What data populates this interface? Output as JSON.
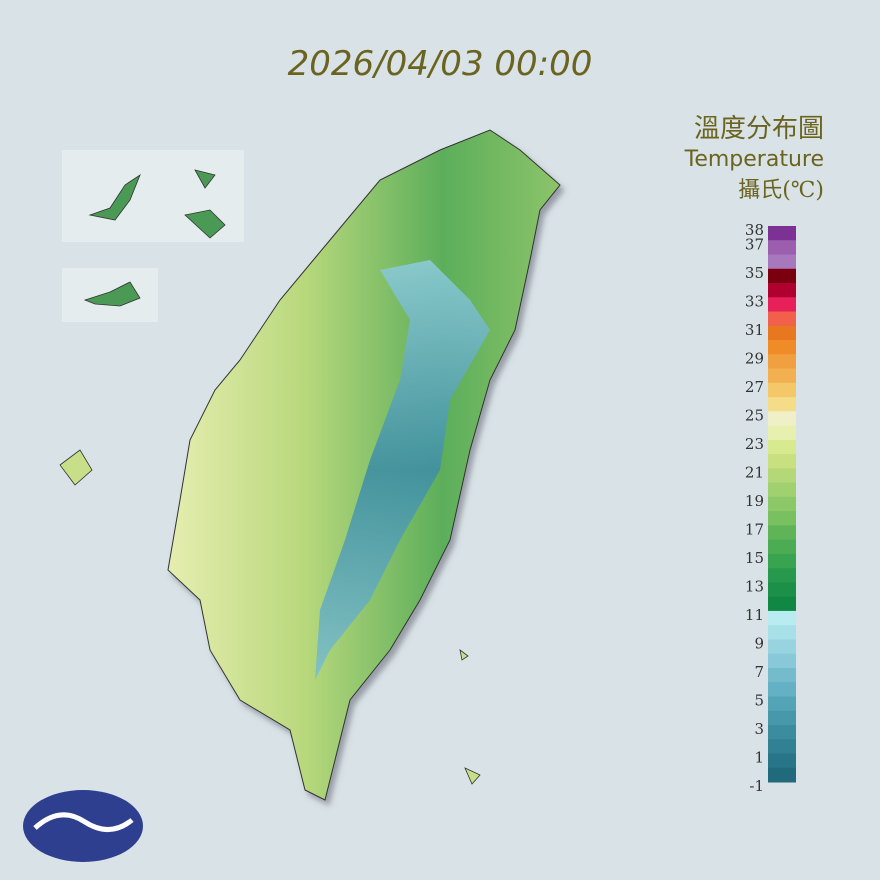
{
  "header": {
    "datetime": "2026/04/03 00:00"
  },
  "legend": {
    "title": "溫度分布圖",
    "subtitle": "Temperature",
    "unit": "攝氏(℃)",
    "labels": [
      38,
      37,
      35,
      33,
      31,
      29,
      27,
      25,
      23,
      21,
      19,
      17,
      15,
      13,
      11,
      9,
      7,
      5,
      3,
      1,
      -1
    ],
    "colors": [
      "#7b3294",
      "#9c5fb0",
      "#a878bc",
      "#7a0010",
      "#b00030",
      "#e8205a",
      "#f0604a",
      "#e87820",
      "#f08c28",
      "#f0a040",
      "#f2b050",
      "#f4c868",
      "#f5dc88",
      "#f0f0c8",
      "#e8f0b0",
      "#d8ea90",
      "#c8e080",
      "#b4d878",
      "#a0d070",
      "#8cc868",
      "#78c060",
      "#60b458",
      "#4cac54",
      "#38a450",
      "#28984c",
      "#1c9048",
      "#108844",
      "#b8ecf0",
      "#a8e0e8",
      "#98d4e0",
      "#88c8d8",
      "#74bccc",
      "#64b0c4",
      "#54a4b8",
      "#4898ac",
      "#3c8ca0",
      "#328094",
      "#287488",
      "#206a7c"
    ]
  }
}
